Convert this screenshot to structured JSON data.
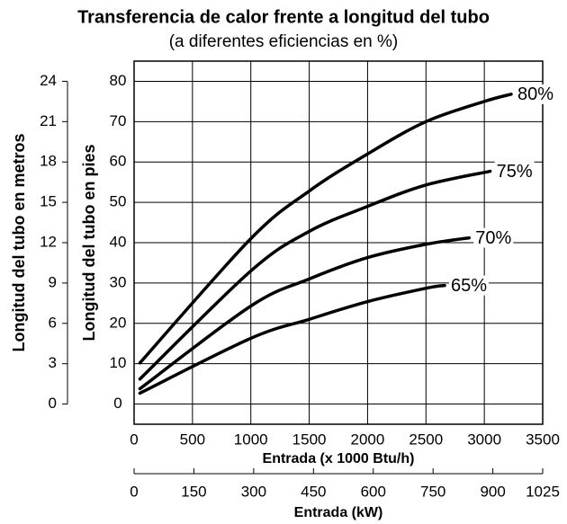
{
  "chart_data": {
    "type": "line",
    "title": "Transferencia de calor frente a longitud del tubo",
    "subtitle": "(a diferentes eficiencias en %)",
    "xlabel": "Entrada (x 1000 Btu/h)",
    "x2label": "Entrada (kW)",
    "ylabel": "Longitud del tubo en pies",
    "y2label": "Longitud del tubo en metros",
    "xlim": [
      0,
      3500
    ],
    "xticks": [
      0,
      500,
      1000,
      1500,
      2000,
      2500,
      3000,
      3500
    ],
    "x2lim": [
      0,
      1025
    ],
    "x2ticks": [
      0,
      150,
      300,
      450,
      600,
      750,
      900,
      1025
    ],
    "ylim": [
      -5,
      85
    ],
    "yticks": [
      0,
      10,
      20,
      30,
      40,
      50,
      60,
      70,
      80
    ],
    "y2lim": [
      -1.5,
      25.5
    ],
    "y2ticks": [
      0,
      3,
      6,
      9,
      12,
      15,
      18,
      21,
      24
    ],
    "grid": true,
    "series": [
      {
        "name": "80%",
        "color": "#000000",
        "x": [
          50,
          1000,
          1500,
          2000,
          2500,
          3000,
          3230
        ],
        "values": [
          10.2,
          41,
          52.8,
          62,
          70,
          75,
          76.8
        ]
      },
      {
        "name": "75%",
        "color": "#000000",
        "x": [
          50,
          1000,
          1500,
          2000,
          2500,
          3050
        ],
        "values": [
          6.2,
          33,
          42.8,
          49,
          54.3,
          57.7
        ]
      },
      {
        "name": "70%",
        "color": "#000000",
        "x": [
          50,
          1000,
          1500,
          2000,
          2500,
          2870
        ],
        "values": [
          3.8,
          24.3,
          31,
          36.3,
          39.6,
          41.2
        ]
      },
      {
        "name": "65%",
        "color": "#000000",
        "x": [
          50,
          1000,
          1500,
          2000,
          2500,
          2660
        ],
        "values": [
          2.7,
          16.3,
          21,
          25.4,
          28.7,
          29.4
        ]
      }
    ]
  }
}
